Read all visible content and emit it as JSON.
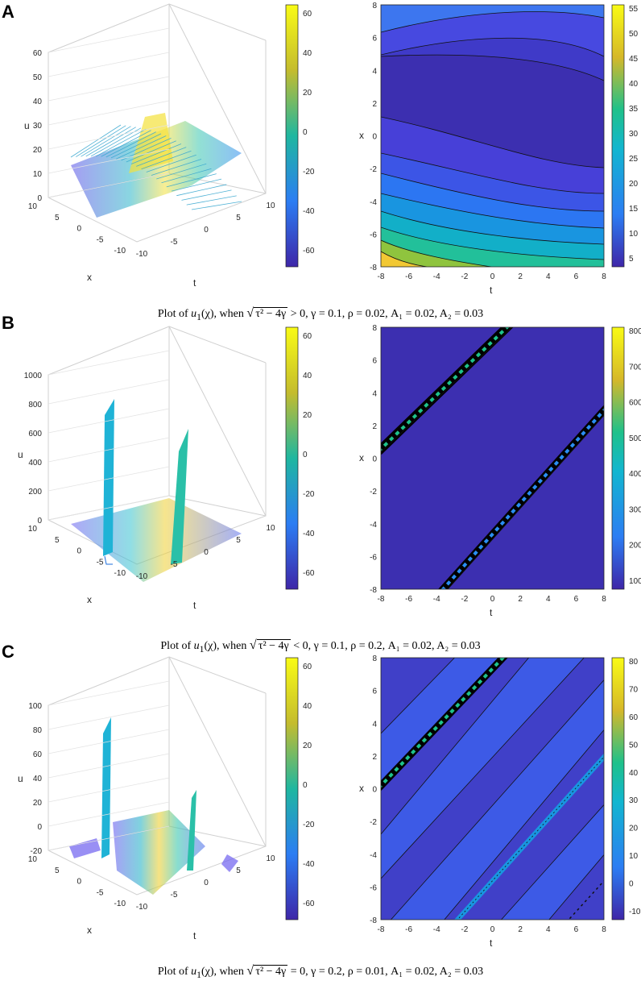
{
  "panels": [
    {
      "letter": "A",
      "surface": {
        "zlabel": "u",
        "xlabel": "x",
        "tlabel": "t",
        "zticks": [
          "0",
          "10",
          "20",
          "30",
          "40",
          "50",
          "60"
        ],
        "xticks": [
          "10",
          "5",
          "0",
          "-5",
          "-10"
        ],
        "tticks": [
          "-10",
          "-5",
          "0",
          "5",
          "10"
        ],
        "cbar_ticks": [
          "60",
          "40",
          "20",
          "0",
          "-20",
          "-40",
          "-60"
        ]
      },
      "contour": {
        "xlabel": "t",
        "ylabel": "x",
        "xticks": [
          "-8",
          "-6",
          "-4",
          "-2",
          "0",
          "2",
          "4",
          "6",
          "8"
        ],
        "yticks": [
          "8",
          "6",
          "4",
          "2",
          "0",
          "-2",
          "-4",
          "-6",
          "-8"
        ],
        "cbar_ticks": [
          "55",
          "50",
          "45",
          "40",
          "35",
          "30",
          "25",
          "20",
          "15",
          "10",
          "5"
        ]
      },
      "caption": {
        "pre": "Plot of ",
        "func": "u",
        "sub": "1",
        "arg": "(χ), when ",
        "radicand": "τ² − 4γ",
        "post": " > 0, γ = 0.1, ρ = 0.02, A₁ = 0.02, A₂ = 0.03"
      }
    },
    {
      "letter": "B",
      "surface": {
        "zlabel": "u",
        "xlabel": "x",
        "tlabel": "t",
        "zticks": [
          "0",
          "200",
          "400",
          "600",
          "800",
          "1000"
        ],
        "xticks": [
          "10",
          "5",
          "0",
          "-5",
          "-10"
        ],
        "tticks": [
          "-10",
          "-5",
          "0",
          "5",
          "10"
        ],
        "cbar_ticks": [
          "60",
          "40",
          "20",
          "0",
          "-20",
          "-40",
          "-60"
        ]
      },
      "contour": {
        "xlabel": "t",
        "ylabel": "x",
        "xticks": [
          "-8",
          "-6",
          "-4",
          "-2",
          "0",
          "2",
          "4",
          "6",
          "8"
        ],
        "yticks": [
          "8",
          "6",
          "4",
          "2",
          "0",
          "-2",
          "-4",
          "-6",
          "-8"
        ],
        "cbar_ticks": [
          "800",
          "700",
          "600",
          "500",
          "400",
          "300",
          "200",
          "100"
        ]
      },
      "caption": {
        "pre": "Plot of ",
        "func": "u",
        "sub": "1",
        "arg": "(χ), when ",
        "radicand": "τ² − 4γ",
        "post": " < 0, γ = 0.1, ρ = 0.2, A₁ = 0.02, A₂ = 0.03"
      }
    },
    {
      "letter": "C",
      "surface": {
        "zlabel": "u",
        "xlabel": "x",
        "tlabel": "t",
        "zticks": [
          "-20",
          "0",
          "20",
          "40",
          "60",
          "80",
          "100"
        ],
        "xticks": [
          "10",
          "5",
          "0",
          "-5",
          "-10"
        ],
        "tticks": [
          "-10",
          "-5",
          "0",
          "5",
          "10"
        ],
        "cbar_ticks": [
          "60",
          "40",
          "20",
          "0",
          "-20",
          "-40",
          "-60"
        ]
      },
      "contour": {
        "xlabel": "t",
        "ylabel": "x",
        "xticks": [
          "-8",
          "-6",
          "-4",
          "-2",
          "0",
          "2",
          "4",
          "6",
          "8"
        ],
        "yticks": [
          "8",
          "6",
          "4",
          "2",
          "0",
          "-2",
          "-4",
          "-6",
          "-8"
        ],
        "cbar_ticks": [
          "80",
          "70",
          "60",
          "50",
          "40",
          "30",
          "20",
          "10",
          "0",
          "-10"
        ]
      },
      "caption": {
        "pre": "Plot of ",
        "func": "u",
        "sub": "1",
        "arg": "(χ), when ",
        "radicand": "τ² − 4γ",
        "post": " = 0, γ = 0.2, ρ = 0.01, A₁ = 0.02, A₂ = 0.03"
      }
    }
  ],
  "chart_data": [
    {
      "panel": "A",
      "type": "surface",
      "title": "",
      "xlabel": "t",
      "ylabel": "x",
      "zlabel": "u",
      "xlim": [
        -10,
        10
      ],
      "ylim": [
        -10,
        10
      ],
      "zlim": [
        0,
        60
      ],
      "colorbar_range": [
        -60,
        60
      ]
    },
    {
      "panel": "A",
      "type": "contour",
      "xlabel": "t",
      "ylabel": "x",
      "xlim": [
        -8,
        8
      ],
      "ylim": [
        -8,
        8
      ],
      "colorbar_range": [
        5,
        55
      ]
    },
    {
      "panel": "B",
      "type": "surface",
      "xlabel": "t",
      "ylabel": "x",
      "zlabel": "u",
      "xlim": [
        -10,
        10
      ],
      "ylim": [
        -10,
        10
      ],
      "zlim": [
        0,
        1000
      ],
      "colorbar_range": [
        -60,
        60
      ]
    },
    {
      "panel": "B",
      "type": "contour",
      "xlabel": "t",
      "ylabel": "x",
      "xlim": [
        -8,
        8
      ],
      "ylim": [
        -8,
        8
      ],
      "colorbar_range": [
        100,
        800
      ]
    },
    {
      "panel": "C",
      "type": "surface",
      "xlabel": "t",
      "ylabel": "x",
      "zlabel": "u",
      "xlim": [
        -10,
        10
      ],
      "ylim": [
        -10,
        10
      ],
      "zlim": [
        -20,
        100
      ],
      "colorbar_range": [
        -60,
        60
      ]
    },
    {
      "panel": "C",
      "type": "contour",
      "xlabel": "t",
      "ylabel": "x",
      "xlim": [
        -8,
        8
      ],
      "ylim": [
        -8,
        8
      ],
      "colorbar_range": [
        -10,
        80
      ]
    }
  ],
  "colors": {
    "parula_low": "#3e26a8",
    "parula_mid": "#1fb7a0",
    "parula_high": "#f9fb15",
    "contour_base": "#3e2fb0",
    "contour_band": "#3d5ae6"
  }
}
